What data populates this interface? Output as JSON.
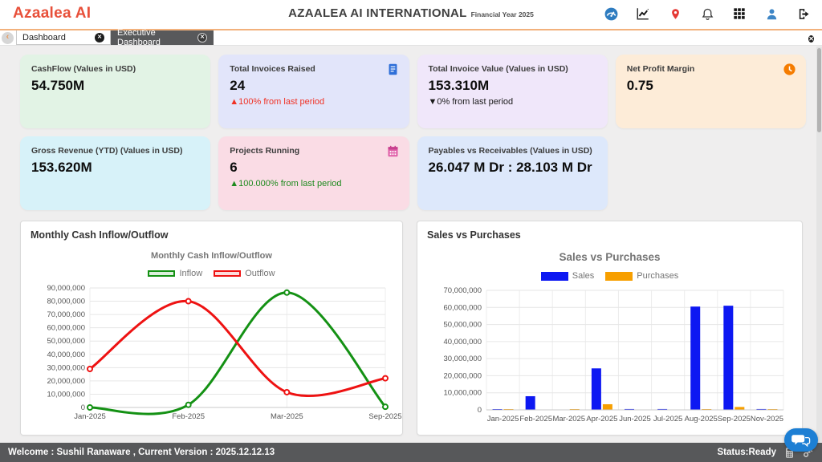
{
  "header": {
    "logo": "Azaalea AI",
    "title": "AZAALEA AI INTERNATIONAL",
    "subtitle": "Financial Year 2025",
    "icons": [
      "gauge-icon",
      "trend-chart-icon",
      "location-pin-icon",
      "bell-icon",
      "grid-menu-icon",
      "user-icon",
      "logout-icon"
    ]
  },
  "tabs": {
    "items": [
      {
        "label": "Dashboard",
        "active": false
      },
      {
        "label": "Executive Dashboard",
        "active": true
      }
    ]
  },
  "kpi_cards": [
    {
      "label": "CashFlow (Values in USD)",
      "value": "54.750M",
      "trend": "",
      "trend_color": "",
      "bg": "#e2f3e5",
      "icon": ""
    },
    {
      "label": "Total Invoices Raised",
      "value": "24",
      "trend": "▲100% from last period",
      "trend_color": "#f03225",
      "bg": "#e2e5fa",
      "icon": "invoice"
    },
    {
      "label": "Total Invoice Value (Values in USD)",
      "value": "153.310M",
      "trend": "▼0% from last period",
      "trend_color": "#1a1a1a",
      "bg": "#f0e7fa",
      "icon": ""
    },
    {
      "label": "Net Profit Margin",
      "value": "0.75",
      "trend": "",
      "trend_color": "",
      "bg": "#fdecd8",
      "icon": "clock"
    },
    {
      "label": "Gross Revenue (YTD) (Values in USD)",
      "value": "153.620M",
      "trend": "",
      "trend_color": "",
      "bg": "#d7f2f9",
      "icon": ""
    },
    {
      "label": "Projects Running",
      "value": "6",
      "trend": "▲100.000% from last period",
      "trend_color": "#1e8a1e",
      "bg": "#fadce5",
      "icon": "calendar"
    },
    {
      "label": "Payables vs Receivables (Values in USD)",
      "value": "26.047 M Dr : 28.103 M Dr",
      "trend": "",
      "trend_color": "",
      "bg": "#dde8fb",
      "icon": ""
    }
  ],
  "chart_data": [
    {
      "type": "line",
      "panel_title": "Monthly Cash Inflow/Outflow",
      "title": "Monthly Cash Inflow/Outflow",
      "categories": [
        "Jan-2025",
        "Feb-2025",
        "Mar-2025",
        "Sep-2025"
      ],
      "series": [
        {
          "name": "Inflow",
          "color": "#149114",
          "values": [
            0,
            2000000,
            86500000,
            500000
          ]
        },
        {
          "name": "Outflow",
          "color": "#ee1212",
          "values": [
            29000000,
            80000000,
            11500000,
            22000000
          ]
        }
      ],
      "ylim": [
        0,
        90000000
      ],
      "ytick": 10000000,
      "legend_position": "top",
      "grid": true
    },
    {
      "type": "bar",
      "panel_title": "Sales vs Purchases",
      "title": "Sales vs Purchases",
      "categories": [
        "Jan-2025",
        "Feb-2025",
        "Mar-2025",
        "Apr-2025",
        "Jun-2025",
        "Jul-2025",
        "Aug-2025",
        "Sep-2025",
        "Nov-2025"
      ],
      "series": [
        {
          "name": "Sales",
          "color": "#0d18f2",
          "values": [
            300000,
            8000000,
            0,
            24300000,
            500000,
            500000,
            60500000,
            61000000,
            500000
          ]
        },
        {
          "name": "Purchases",
          "color": "#f79f00",
          "values": [
            300000,
            0,
            300000,
            3300000,
            0,
            0,
            200000,
            1700000,
            200000
          ]
        }
      ],
      "ylim": [
        0,
        70000000
      ],
      "ytick": 10000000,
      "legend_position": "top",
      "grid": true
    }
  ],
  "status_bar": {
    "left": "Welcome : Sushil Ranaware , Current Version : 2025.12.12.13",
    "right": "Status:Ready"
  }
}
